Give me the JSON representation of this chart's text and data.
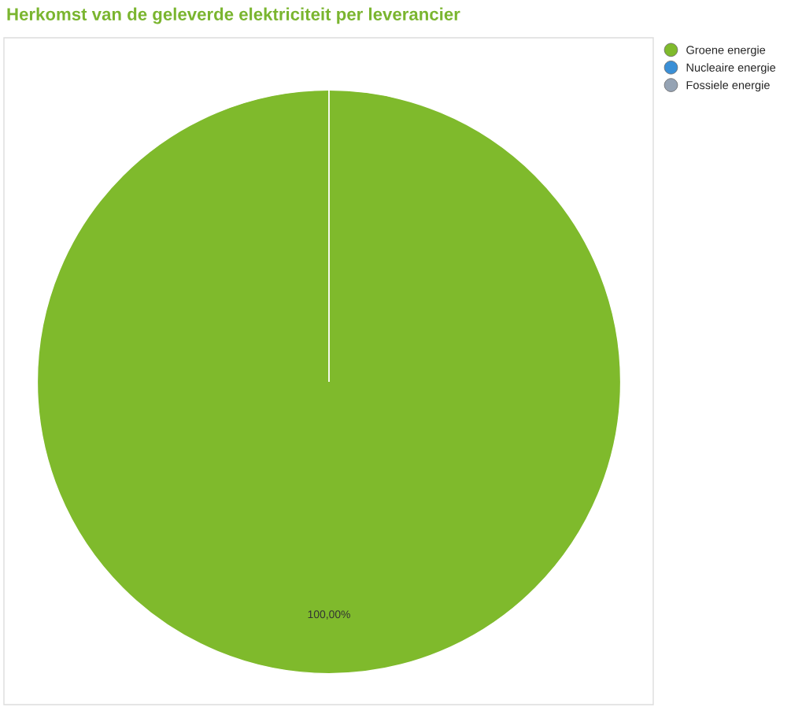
{
  "chart_data": {
    "type": "pie",
    "title": "Herkomst van de geleverde elektriciteit per leverancier",
    "categories": [
      "Groene energie",
      "Nucleaire energie",
      "Fossiele energie"
    ],
    "values": [
      100,
      0,
      0
    ],
    "colors": [
      "#7fba2c",
      "#3a8fd6",
      "#95a3b4"
    ],
    "value_labels": [
      "100,00%",
      null,
      null
    ],
    "legend": "top right"
  }
}
